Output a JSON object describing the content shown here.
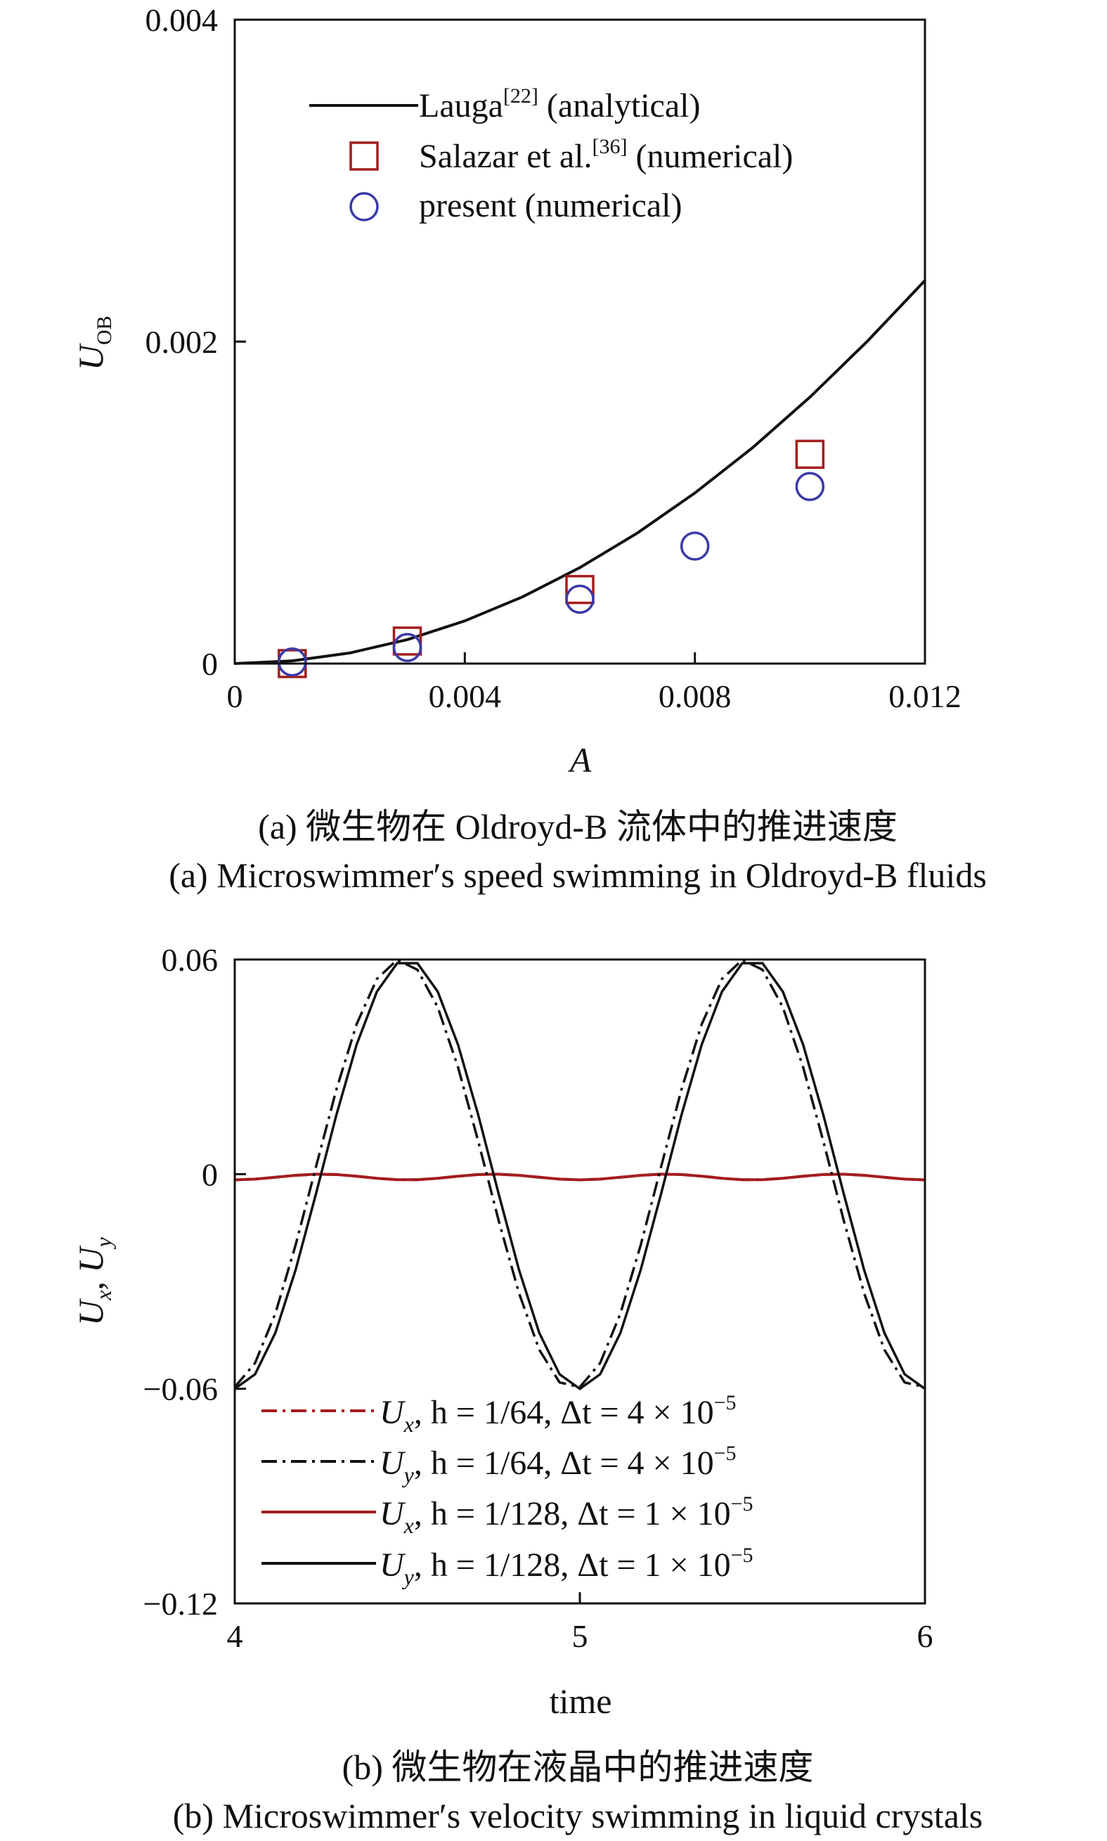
{
  "chart_data": [
    {
      "type": "scatter",
      "panel": "a",
      "xlabel": "A",
      "ylabel": {
        "main": "U",
        "sub": "OB"
      },
      "xlim": [
        0,
        0.012
      ],
      "ylim": [
        0,
        0.004
      ],
      "xticks": [
        {
          "v": 0,
          "label": "0"
        },
        {
          "v": 0.004,
          "label": "0.004"
        },
        {
          "v": 0.008,
          "label": "0.008"
        },
        {
          "v": 0.012,
          "label": "0.012"
        }
      ],
      "yticks": [
        {
          "v": 0,
          "label": "0"
        },
        {
          "v": 0.002,
          "label": "0.002"
        },
        {
          "v": 0.004,
          "label": "0.004"
        }
      ],
      "legend_position": "top-left",
      "series": [
        {
          "name": "Lauga",
          "ref": "[22]",
          "suffix": " (analytical)",
          "kind": "line",
          "color": "#111111",
          "x": [
            0,
            0.001,
            0.002,
            0.003,
            0.004,
            0.005,
            0.006,
            0.007,
            0.008,
            0.009,
            0.01,
            0.011,
            0.012
          ],
          "y": [
            0,
            1.7e-05,
            6.6e-05,
            0.000149,
            0.000265,
            0.000414,
            0.000596,
            0.000811,
            0.00106,
            0.00134,
            0.001655,
            0.002003,
            0.00238
          ]
        },
        {
          "name": "Salazar et al.",
          "ref": "[36]",
          "suffix": " (numerical)",
          "kind": "square",
          "color": "#a41d1d",
          "x": [
            0.001,
            0.003,
            0.006,
            0.01
          ],
          "y": [
            0.0,
            0.00014,
            0.00046,
            0.0013
          ]
        },
        {
          "name": "present (numerical)",
          "ref": "",
          "suffix": "",
          "kind": "circle",
          "color": "#3a3aa8",
          "x": [
            0.001,
            0.003,
            0.006,
            0.008,
            0.01
          ],
          "y": [
            1e-05,
            0.0001,
            0.0004,
            0.00073,
            0.0011
          ]
        }
      ]
    },
    {
      "type": "line",
      "panel": "b",
      "xlabel": "time",
      "ylabel": {
        "u1": "U",
        "s1": "x",
        "sep": ", ",
        "u2": "U",
        "s2": "y"
      },
      "xlim": [
        4,
        6
      ],
      "ylim": [
        -0.12,
        0.06
      ],
      "xticks": [
        {
          "v": 4,
          "label": "4"
        },
        {
          "v": 5,
          "label": "5"
        },
        {
          "v": 6,
          "label": "6"
        }
      ],
      "yticks": [
        {
          "v": 0.06,
          "label": "0.06"
        },
        {
          "v": 0,
          "label": "0"
        },
        {
          "v": -0.06,
          "label": "−0.06"
        },
        {
          "v": -0.12,
          "label": "−0.12"
        }
      ],
      "legend_position": "bottom-left",
      "series": [
        {
          "sym": "U",
          "sub": "x",
          "rest": ", h = 1/64, Δt = 4 × 10",
          "exp": "−5",
          "color": "#a41d1d",
          "dash": "dashdot",
          "kind": "Ux",
          "phase": 0.0
        },
        {
          "sym": "U",
          "sub": "y",
          "rest": ", h = 1/64, Δt = 4 × 10",
          "exp": "−5",
          "color": "#111111",
          "dash": "dashdot",
          "kind": "Uy",
          "phase": -0.02
        },
        {
          "sym": "U",
          "sub": "x",
          "rest": ", h = 1/128, Δt = 1 × 10",
          "exp": "−5",
          "color": "#a41d1d",
          "dash": "solid",
          "kind": "Ux",
          "phase": 0.0
        },
        {
          "sym": "U",
          "sub": "y",
          "rest": ", h = 1/128, Δt = 1 × 10",
          "exp": "−5",
          "color": "#111111",
          "dash": "solid",
          "kind": "Uy",
          "phase": 0.0
        }
      ]
    }
  ],
  "captions": {
    "a_cn": "(a) 微生物在 Oldroyd-B 流体中的推进速度",
    "a_en": "(a) Microswimmer′s speed swimming in Oldroyd-B fluids",
    "b_cn": "(b) 微生物在液晶中的推进速度",
    "b_en": "(b) Microswimmer′s velocity swimming in liquid crystals"
  }
}
